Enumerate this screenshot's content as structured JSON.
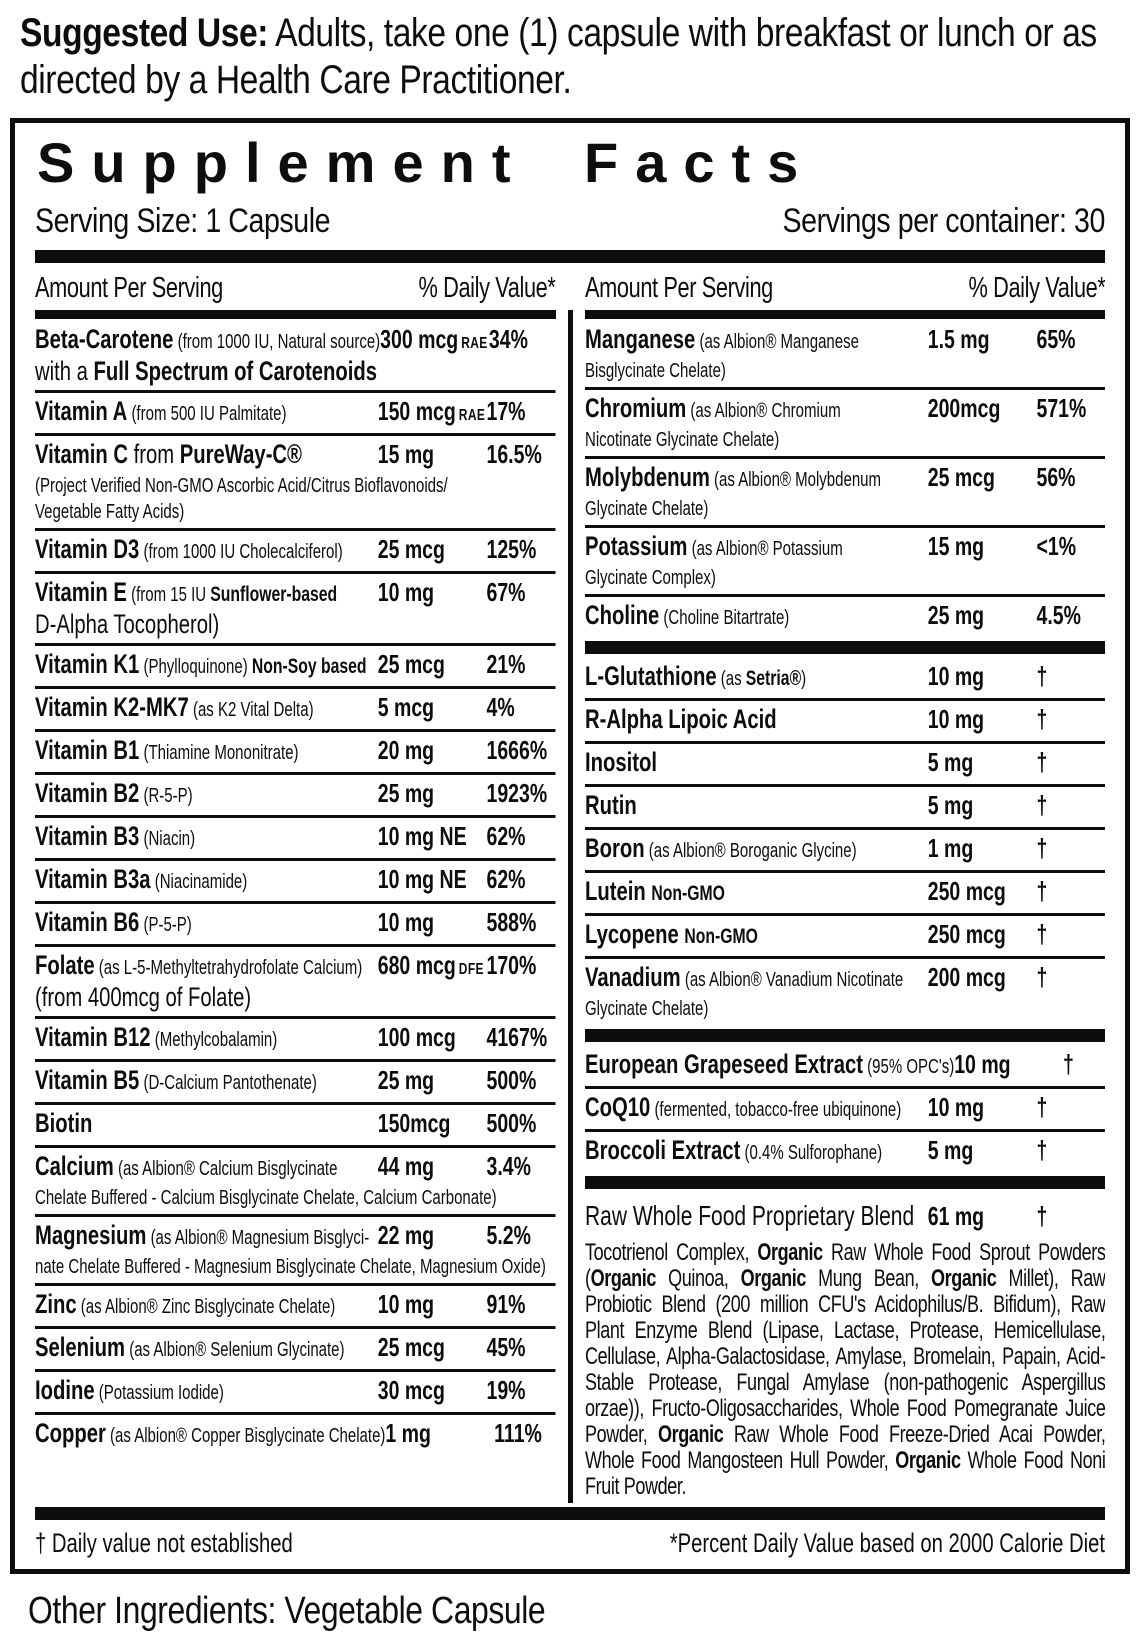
{
  "suggested_use": {
    "label": "Suggested Use:",
    "text": " Adults, take one (1) capsule with breakfast or lunch or as directed by a Health Care Practitioner."
  },
  "panel": {
    "title": "Supplement Facts",
    "serving_size": "Serving Size: 1 Capsule",
    "servings_per_container": "Servings per container: 30",
    "header": {
      "amount": "Amount Per Serving",
      "dv": "% Daily Value*"
    },
    "footnote_left": "† Daily value not established",
    "footnote_right": "*Percent Daily Value based on 2000 Calorie Diet",
    "columns": {
      "left": [
        {
          "type": "row",
          "n": [
            {
              "t": "Beta-Carotene",
              "c": "b"
            },
            {
              "t": " (from 1000 IU, Natural source)",
              "c": "d"
            }
          ],
          "a": "300 mcg",
          "as": "RAE",
          "d": "34%",
          "cont": [
            [
              {
                "t": "with a ",
                "c": "r"
              },
              {
                "t": "Full Spectrum of Carotenoids",
                "c": "b"
              }
            ]
          ]
        },
        {
          "type": "row",
          "n": [
            {
              "t": "Vitamin A",
              "c": "b"
            },
            {
              "t": " (from 500 IU Palmitate)",
              "c": "d"
            }
          ],
          "a": "150 mcg",
          "as": "RAE",
          "d": "17%"
        },
        {
          "type": "row",
          "n": [
            {
              "t": "Vitamin C",
              "c": "b"
            },
            {
              "t": " from ",
              "c": "r"
            },
            {
              "t": "PureWay-C®",
              "c": "b"
            }
          ],
          "a": "15 mg",
          "d": "16.5%",
          "cont": [
            [
              {
                "t": "(Project Verified Non-GMO Ascorbic Acid/Citrus Bioflavonoids/",
                "c": "d"
              }
            ],
            [
              {
                "t": "Vegetable Fatty Acids)",
                "c": "d"
              }
            ]
          ]
        },
        {
          "type": "row",
          "n": [
            {
              "t": "Vitamin D3",
              "c": "b"
            },
            {
              "t": " (from 1000 IU Cholecalciferol)",
              "c": "d"
            }
          ],
          "a": "25 mcg",
          "d": "125%"
        },
        {
          "type": "row",
          "n": [
            {
              "t": "Vitamin E",
              "c": "b"
            },
            {
              "t": " (from 15 IU ",
              "c": "d"
            },
            {
              "t": "Sunflower-based",
              "c": "db"
            }
          ],
          "a": "10 mg",
          "d": "67%",
          "cont": [
            [
              {
                "t": "D-Alpha Tocopherol)",
                "c": "r"
              }
            ]
          ]
        },
        {
          "type": "row",
          "n": [
            {
              "t": "Vitamin K1",
              "c": "b"
            },
            {
              "t": " (Phylloquinone) ",
              "c": "d"
            },
            {
              "t": "Non-Soy based",
              "c": "db"
            }
          ],
          "a": "25 mcg",
          "d": "21%"
        },
        {
          "type": "row",
          "n": [
            {
              "t": "Vitamin K2-MK7",
              "c": "b"
            },
            {
              "t": " (as K2 Vital Delta)",
              "c": "d"
            }
          ],
          "a": "5 mcg",
          "d": "4%"
        },
        {
          "type": "row",
          "n": [
            {
              "t": "Vitamin B1",
              "c": "b"
            },
            {
              "t": " (Thiamine Mononitrate)",
              "c": "d"
            }
          ],
          "a": "20 mg",
          "d": "1666%"
        },
        {
          "type": "row",
          "n": [
            {
              "t": "Vitamin B2",
              "c": "b"
            },
            {
              "t": " (R-5-P)",
              "c": "d"
            }
          ],
          "a": "25 mg",
          "d": "1923%"
        },
        {
          "type": "row",
          "n": [
            {
              "t": "Vitamin B3",
              "c": "b"
            },
            {
              "t": " (Niacin)",
              "c": "d"
            }
          ],
          "a": "10 mg NE",
          "d": "62%"
        },
        {
          "type": "row",
          "n": [
            {
              "t": "Vitamin B3a",
              "c": "b"
            },
            {
              "t": " (Niacinamide)",
              "c": "d"
            }
          ],
          "a": "10 mg NE",
          "d": "62%"
        },
        {
          "type": "row",
          "n": [
            {
              "t": "Vitamin B6",
              "c": "b"
            },
            {
              "t": " (P-5-P)",
              "c": "d"
            }
          ],
          "a": "10 mg",
          "d": "588%"
        },
        {
          "type": "row",
          "n": [
            {
              "t": "Folate",
              "c": "b"
            },
            {
              "t": " (as L-5-Methyltetrahydrofolate Calcium)",
              "c": "d"
            }
          ],
          "a": "680 mcg",
          "as": "DFE",
          "d": "170%",
          "cont": [
            [
              {
                "t": "(from 400mcg of Folate)",
                "c": "r"
              }
            ]
          ]
        },
        {
          "type": "row",
          "n": [
            {
              "t": "Vitamin B12",
              "c": "b"
            },
            {
              "t": " (Methylcobalamin)",
              "c": "d"
            }
          ],
          "a": "100 mcg",
          "d": "4167%"
        },
        {
          "type": "row",
          "n": [
            {
              "t": "Vitamin B5",
              "c": "b"
            },
            {
              "t": " (D-Calcium Pantothenate)",
              "c": "d"
            }
          ],
          "a": "25 mg",
          "d": "500%"
        },
        {
          "type": "row",
          "n": [
            {
              "t": "Biotin",
              "c": "b"
            }
          ],
          "a": "150mcg",
          "d": "500%"
        },
        {
          "type": "row",
          "n": [
            {
              "t": "Calcium",
              "c": "b"
            },
            {
              "t": " (as Albion® Calcium Bisglycinate",
              "c": "d"
            }
          ],
          "a": "44 mg",
          "d": "3.4%",
          "cont": [
            [
              {
                "t": "Chelate Buffered - Calcium Bisglycinate Chelate, Calcium Carbonate)",
                "c": "d"
              }
            ]
          ]
        },
        {
          "type": "row",
          "n": [
            {
              "t": "Magnesium",
              "c": "b"
            },
            {
              "t": " (as Albion® Magnesium Bisglyci-",
              "c": "d"
            }
          ],
          "a": "22 mg",
          "d": "5.2%",
          "cont": [
            [
              {
                "t": "nate Chelate Buffered - Magnesium Bisglycinate Chelate, Magnesium Oxide)",
                "c": "d"
              }
            ]
          ]
        },
        {
          "type": "row",
          "n": [
            {
              "t": "Zinc",
              "c": "b"
            },
            {
              "t": " (as Albion® Zinc Bisglycinate Chelate)",
              "c": "d"
            }
          ],
          "a": "10 mg",
          "d": "91%"
        },
        {
          "type": "row",
          "n": [
            {
              "t": "Selenium",
              "c": "b"
            },
            {
              "t": " (as Albion® Selenium Glycinate)",
              "c": "d"
            }
          ],
          "a": "25 mcg",
          "d": "45%"
        },
        {
          "type": "row",
          "n": [
            {
              "t": "Iodine",
              "c": "b"
            },
            {
              "t": " (Potassium Iodide)",
              "c": "d"
            }
          ],
          "a": "30 mcg",
          "d": "19%"
        },
        {
          "type": "row",
          "n": [
            {
              "t": "Copper",
              "c": "b"
            },
            {
              "t": " (as Albion® Copper Bisglycinate Chelate)",
              "c": "d"
            }
          ],
          "a": "1 mg",
          "d": "111%"
        }
      ],
      "right": [
        {
          "type": "row",
          "n": [
            {
              "t": "Manganese",
              "c": "b"
            },
            {
              "t": " (as Albion® Manganese",
              "c": "d"
            }
          ],
          "a": "1.5 mg",
          "d": "65%",
          "cont": [
            [
              {
                "t": "Bisglycinate Chelate)",
                "c": "d"
              }
            ]
          ]
        },
        {
          "type": "row",
          "n": [
            {
              "t": "Chromium",
              "c": "b"
            },
            {
              "t": " (as Albion® Chromium",
              "c": "d"
            }
          ],
          "a": "200mcg",
          "d": "571%",
          "cont": [
            [
              {
                "t": "Nicotinate Glycinate Chelate)",
                "c": "d"
              }
            ]
          ]
        },
        {
          "type": "row",
          "n": [
            {
              "t": "Molybdenum",
              "c": "b"
            },
            {
              "t": " (as Albion® Molybdenum",
              "c": "d"
            }
          ],
          "a": "25 mcg",
          "d": "56%",
          "cont": [
            [
              {
                "t": "Glycinate Chelate)",
                "c": "d"
              }
            ]
          ]
        },
        {
          "type": "row",
          "n": [
            {
              "t": "Potassium",
              "c": "b"
            },
            {
              "t": " (as Albion® Potassium",
              "c": "d"
            }
          ],
          "a": "15 mg",
          "d": "<1%",
          "cont": [
            [
              {
                "t": "Glycinate Complex)",
                "c": "d"
              }
            ]
          ]
        },
        {
          "type": "row",
          "n": [
            {
              "t": "Choline",
              "c": "b"
            },
            {
              "t": " (Choline Bitartrate)",
              "c": "d"
            }
          ],
          "a": "25 mg",
          "d": "4.5%"
        },
        {
          "type": "bar"
        },
        {
          "type": "row",
          "n": [
            {
              "t": "L-Glutathione",
              "c": "b"
            },
            {
              "t": " (as ",
              "c": "d"
            },
            {
              "t": "Setria®",
              "c": "db"
            },
            {
              "t": ")",
              "c": "d"
            }
          ],
          "a": "10 mg",
          "d": "†"
        },
        {
          "type": "row",
          "n": [
            {
              "t": "R-Alpha Lipoic Acid",
              "c": "b"
            }
          ],
          "a": "10 mg",
          "d": "†"
        },
        {
          "type": "row",
          "n": [
            {
              "t": "Inositol",
              "c": "b"
            }
          ],
          "a": "5 mg",
          "d": "†"
        },
        {
          "type": "row",
          "n": [
            {
              "t": "Rutin",
              "c": "b"
            }
          ],
          "a": "5 mg",
          "d": "†"
        },
        {
          "type": "row",
          "n": [
            {
              "t": "Boron",
              "c": "b"
            },
            {
              "t": " (as Albion® Boroganic Glycine)",
              "c": "d"
            }
          ],
          "a": "1 mg",
          "d": "†"
        },
        {
          "type": "row",
          "n": [
            {
              "t": "Lutein",
              "c": "b"
            },
            {
              "t": "  ",
              "c": "r"
            },
            {
              "t": "Non-GMO",
              "c": "db"
            }
          ],
          "a": "250 mcg",
          "d": "†"
        },
        {
          "type": "row",
          "n": [
            {
              "t": "Lycopene",
              "c": "b"
            },
            {
              "t": "  ",
              "c": "r"
            },
            {
              "t": "Non-GMO",
              "c": "db"
            }
          ],
          "a": "250 mcg",
          "d": "†"
        },
        {
          "type": "row",
          "n": [
            {
              "t": "Vanadium",
              "c": "b"
            },
            {
              "t": " (as Albion® Vanadium Nicotinate",
              "c": "d"
            }
          ],
          "a": "200 mcg",
          "d": "†",
          "cont": [
            [
              {
                "t": "Glycinate Chelate)",
                "c": "d"
              }
            ]
          ]
        },
        {
          "type": "bar"
        },
        {
          "type": "row",
          "n": [
            {
              "t": "European Grapeseed Extract",
              "c": "b"
            },
            {
              "t": " (95% OPC's)",
              "c": "d"
            }
          ],
          "a": "10 mg",
          "d": "†"
        },
        {
          "type": "row",
          "n": [
            {
              "t": "CoQ10",
              "c": "b"
            },
            {
              "t": " (fermented, tobacco-free ubiquinone)",
              "c": "d"
            }
          ],
          "a": "10 mg",
          "d": "†"
        },
        {
          "type": "row",
          "n": [
            {
              "t": "Broccoli Extract",
              "c": "b"
            },
            {
              "t": " (0.4% Sulforophane)",
              "c": "d"
            }
          ],
          "a": "5 mg",
          "d": "†"
        },
        {
          "type": "bar"
        },
        {
          "type": "blend",
          "n": [
            {
              "t": "Raw Whole Food Proprietary Blend",
              "c": "r"
            }
          ],
          "a": "61 mg",
          "d": "†",
          "body": [
            {
              "t": "Tocotrienol Complex, "
            },
            {
              "t": "Organic",
              "c": "bb"
            },
            {
              "t": " Raw Whole Food Sprout Powders ("
            },
            {
              "t": "Organic",
              "c": "bb"
            },
            {
              "t": " Quinoa, "
            },
            {
              "t": "Organic",
              "c": "bb"
            },
            {
              "t": " Mung Bean, "
            },
            {
              "t": "Organic",
              "c": "bb"
            },
            {
              "t": " Millet), Raw Probiotic Blend (200 million CFU's Acidophilus/B. Bifidum), Raw Plant Enzyme Blend (Lipase, Lactase, Protease, Hemicellulase, Cellulase, Alpha-Galactosidase, Amylase, Bromelain, Papain, Acid-Stable Protease, Fungal Amylase (non-pathogenic Aspergillus orzae)), Fructo-Oligosaccharides, Whole Food Pomegranate Juice Powder, "
            },
            {
              "t": "Organic",
              "c": "bb"
            },
            {
              "t": " Raw Whole Food Freeze-Dried Acai Powder, Whole Food Mangosteen Hull Powder, "
            },
            {
              "t": "Organic",
              "c": "bb"
            },
            {
              "t": " Whole Food Noni Fruit Powder."
            }
          ]
        }
      ]
    }
  },
  "other_ingredients": "Other Ingredients: Vegetable Capsule",
  "colors": {
    "ink": "#0d0d0d",
    "paper": "#ffffff"
  }
}
